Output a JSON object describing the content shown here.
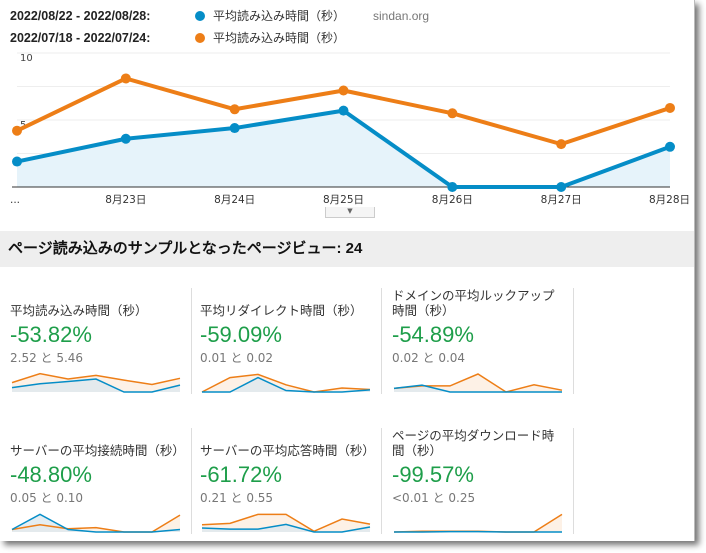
{
  "legend": [
    {
      "date_range": "2022/08/22 - 2022/08/28:",
      "metric": "平均読み込み時間（秒）",
      "color": "#058dc7"
    },
    {
      "date_range": "2022/07/18 - 2022/07/24:",
      "metric": "平均読み込み時間（秒）",
      "color": "#ed7e17"
    }
  ],
  "watermark": "sindan.org",
  "chart_data": {
    "type": "area",
    "categories": [
      "...",
      "8月23日",
      "8月24日",
      "8月25日",
      "8月26日",
      "8月27日",
      "8月28日"
    ],
    "ylim": [
      0,
      10
    ],
    "yticks": [
      "5",
      "10"
    ],
    "grid": true,
    "series": [
      {
        "name": "平均読み込み時間（秒）",
        "period": "2022/08/22 - 2022/08/28",
        "color": "#058dc7",
        "filled": true,
        "values": [
          1.9,
          3.6,
          4.4,
          5.7,
          0,
          0,
          3.0
        ]
      },
      {
        "name": "平均読み込み時間（秒）",
        "period": "2022/07/18 - 2022/07/24",
        "color": "#ed7e17",
        "filled": false,
        "values": [
          4.2,
          8.1,
          5.8,
          7.2,
          5.5,
          3.2,
          5.9
        ]
      }
    ]
  },
  "expander_icon": "triangle-down-icon",
  "sample": {
    "label": "ページ読み込みのサンプルとなったページビュー: 24"
  },
  "cards": [
    {
      "title": "平均読み込み時間（秒）",
      "pct": "-53.82%",
      "compare": "2.52 と 5.46",
      "current": [
        12,
        23,
        29,
        36,
        0,
        0,
        19
      ],
      "previous": [
        26,
        51,
        36,
        46,
        33,
        21,
        38
      ]
    },
    {
      "title": "平均リダイレクト時間（秒）",
      "pct": "-59.09%",
      "compare": "0.01 と 0.02",
      "current": [
        0,
        0,
        40,
        4,
        0,
        0,
        6
      ],
      "previous": [
        0,
        40,
        49,
        20,
        0,
        11,
        7
      ]
    },
    {
      "title": "ドメインの平均ルックアップ時間（秒）",
      "pct": "-54.89%",
      "compare": "0.02 と 0.04",
      "current": [
        10,
        19,
        0,
        0,
        0,
        0,
        0
      ],
      "previous": [
        10,
        17,
        17,
        50,
        0,
        20,
        5
      ]
    },
    {
      "title": "サーバーの平均接続時間（秒）",
      "pct": "-48.80%",
      "compare": "0.05 と 0.10",
      "current": [
        7,
        49,
        7,
        0,
        0,
        0,
        7
      ],
      "previous": [
        7,
        20,
        9,
        12,
        0,
        0,
        47
      ]
    },
    {
      "title": "サーバーの平均応答時間（秒）",
      "pct": "-61.72%",
      "compare": "0.21 と 0.55",
      "current": [
        11,
        8,
        8,
        21,
        0,
        0,
        14
      ],
      "previous": [
        20,
        24,
        49,
        49,
        2,
        36,
        22
      ]
    },
    {
      "title": "ページの平均ダウンロード時間（秒）",
      "pct": "-99.57%",
      "compare": "<0.01 と 0.25",
      "current": [
        0,
        0,
        1,
        1,
        0,
        0,
        0
      ],
      "previous": [
        0,
        2,
        2,
        2,
        0,
        0,
        49
      ]
    }
  ]
}
